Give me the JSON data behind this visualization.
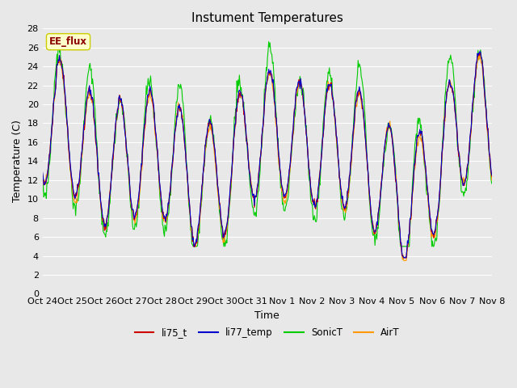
{
  "title": "Instument Temperatures",
  "xlabel": "Time",
  "ylabel": "Temperature (C)",
  "ylim": [
    0,
    28
  ],
  "yticks": [
    0,
    2,
    4,
    6,
    8,
    10,
    12,
    14,
    16,
    18,
    20,
    22,
    24,
    26,
    28
  ],
  "xtick_labels": [
    "Oct 24",
    "Oct 25",
    "Oct 26",
    "Oct 27",
    "Oct 28",
    "Oct 29",
    "Oct 30",
    "Oct 31",
    "Nov 1",
    "Nov 2",
    "Nov 3",
    "Nov 4",
    "Nov 5",
    "Nov 6",
    "Nov 7",
    "Nov 8"
  ],
  "colors": {
    "li75_t": "#cc0000",
    "li77_temp": "#0000cc",
    "SonicT": "#00cc00",
    "AirT": "#ff9900"
  },
  "legend_label": "EE_flux",
  "legend_label_color": "#8b0000",
  "legend_box_facecolor": "#ffffcc",
  "legend_box_edgecolor": "#cccc00",
  "fig_facecolor": "#e8e8e8",
  "plot_bg_color": "#e8e8e8",
  "grid_color": "#ffffff",
  "title_fontsize": 11,
  "axis_fontsize": 9,
  "tick_fontsize": 8,
  "linewidth": 0.8,
  "n_days": 15,
  "n_per_day": 48
}
